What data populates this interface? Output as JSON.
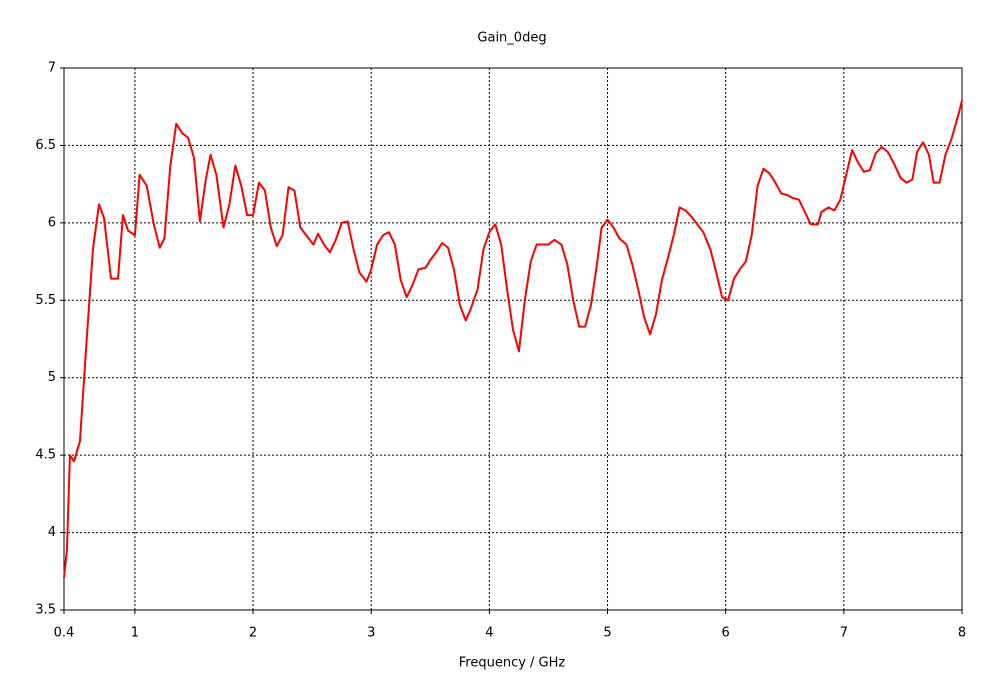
{
  "chart_data": {
    "type": "line",
    "title": "Gain_0deg",
    "x_label": "Frequency / GHz",
    "color": "#ff0000",
    "grid": true,
    "xlim": [
      0.4,
      8
    ],
    "xticks": [
      0.4,
      1,
      2,
      3,
      4,
      5,
      6,
      7,
      8
    ],
    "ylim": [
      3.5,
      7
    ],
    "yticks": [
      3.5,
      4,
      4.5,
      5,
      5.5,
      6,
      6.5,
      7
    ],
    "x": [
      0.4,
      0.425,
      0.45,
      0.485,
      0.535,
      0.586,
      0.645,
      0.696,
      0.739,
      0.798,
      0.857,
      0.899,
      0.942,
      1.0,
      1.04,
      1.1,
      1.16,
      1.21,
      1.25,
      1.3,
      1.35,
      1.4,
      1.45,
      1.5,
      1.55,
      1.6,
      1.64,
      1.69,
      1.75,
      1.8,
      1.85,
      1.9,
      1.95,
      2.0,
      2.05,
      2.1,
      2.15,
      2.2,
      2.25,
      2.3,
      2.35,
      2.4,
      2.45,
      2.51,
      2.55,
      2.6,
      2.65,
      2.7,
      2.75,
      2.8,
      2.85,
      2.9,
      2.96,
      3.0,
      3.05,
      3.1,
      3.15,
      3.2,
      3.25,
      3.3,
      3.35,
      3.4,
      3.46,
      3.5,
      3.55,
      3.6,
      3.65,
      3.7,
      3.75,
      3.8,
      3.84,
      3.9,
      3.95,
      4.0,
      4.05,
      4.1,
      4.15,
      4.2,
      4.25,
      4.3,
      4.35,
      4.4,
      4.45,
      4.5,
      4.55,
      4.61,
      4.66,
      4.71,
      4.76,
      4.81,
      4.86,
      4.91,
      4.95,
      5.0,
      5.05,
      5.1,
      5.16,
      5.21,
      5.26,
      5.31,
      5.36,
      5.41,
      5.46,
      5.51,
      5.56,
      5.61,
      5.66,
      5.71,
      5.77,
      5.81,
      5.87,
      5.92,
      5.97,
      6.02,
      6.07,
      6.12,
      6.17,
      6.22,
      6.27,
      6.32,
      6.37,
      6.42,
      6.47,
      6.52,
      6.57,
      6.62,
      6.67,
      6.72,
      6.78,
      6.81,
      6.87,
      6.92,
      6.97,
      7.02,
      7.07,
      7.12,
      7.17,
      7.22,
      7.27,
      7.32,
      7.37,
      7.42,
      7.48,
      7.53,
      7.58,
      7.62,
      7.67,
      7.72,
      7.76,
      7.81,
      7.86,
      7.91,
      7.97,
      8.0
    ],
    "values": [
      3.71,
      3.89,
      4.5,
      4.46,
      4.59,
      5.18,
      5.83,
      6.12,
      6.03,
      5.64,
      5.64,
      6.05,
      5.95,
      5.92,
      6.31,
      6.24,
      5.99,
      5.84,
      5.9,
      6.37,
      6.64,
      6.58,
      6.55,
      6.42,
      6.01,
      6.28,
      6.44,
      6.31,
      5.97,
      6.12,
      6.37,
      6.24,
      6.05,
      6.05,
      6.26,
      6.21,
      5.97,
      5.85,
      5.92,
      6.23,
      6.21,
      5.97,
      5.92,
      5.86,
      5.93,
      5.86,
      5.81,
      5.89,
      6.0,
      6.01,
      5.83,
      5.68,
      5.62,
      5.7,
      5.86,
      5.92,
      5.94,
      5.86,
      5.63,
      5.52,
      5.6,
      5.7,
      5.71,
      5.76,
      5.81,
      5.87,
      5.84,
      5.7,
      5.47,
      5.37,
      5.44,
      5.57,
      5.83,
      5.94,
      5.99,
      5.86,
      5.57,
      5.31,
      5.17,
      5.5,
      5.75,
      5.86,
      5.86,
      5.86,
      5.89,
      5.86,
      5.73,
      5.5,
      5.33,
      5.33,
      5.47,
      5.73,
      5.97,
      6.02,
      5.97,
      5.9,
      5.86,
      5.73,
      5.57,
      5.39,
      5.28,
      5.41,
      5.63,
      5.77,
      5.92,
      6.1,
      6.08,
      6.04,
      5.98,
      5.94,
      5.83,
      5.68,
      5.52,
      5.5,
      5.64,
      5.7,
      5.75,
      5.92,
      6.24,
      6.35,
      6.32,
      6.26,
      6.19,
      6.18,
      6.16,
      6.15,
      6.07,
      5.99,
      5.99,
      6.07,
      6.1,
      6.08,
      6.15,
      6.31,
      6.47,
      6.39,
      6.33,
      6.34,
      6.45,
      6.49,
      6.46,
      6.39,
      6.29,
      6.26,
      6.28,
      6.46,
      6.52,
      6.44,
      6.26,
      6.26,
      6.44,
      6.54,
      6.7,
      6.79
    ]
  }
}
